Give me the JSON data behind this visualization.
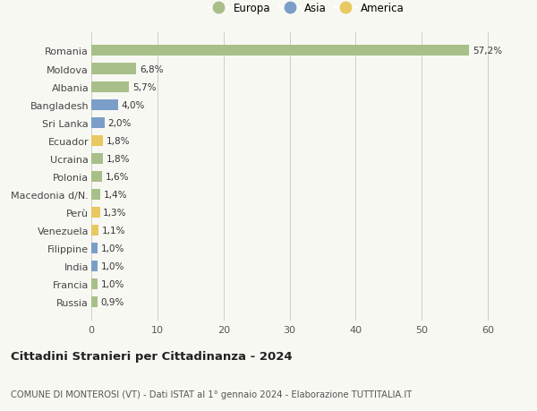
{
  "countries": [
    "Romania",
    "Moldova",
    "Albania",
    "Bangladesh",
    "Sri Lanka",
    "Ecuador",
    "Ucraina",
    "Polonia",
    "Macedonia d/N.",
    "Perù",
    "Venezuela",
    "Filippine",
    "India",
    "Francia",
    "Russia"
  ],
  "values": [
    57.2,
    6.8,
    5.7,
    4.0,
    2.0,
    1.8,
    1.8,
    1.6,
    1.4,
    1.3,
    1.1,
    1.0,
    1.0,
    1.0,
    0.9
  ],
  "labels": [
    "57,2%",
    "6,8%",
    "5,7%",
    "4,0%",
    "2,0%",
    "1,8%",
    "1,8%",
    "1,6%",
    "1,4%",
    "1,3%",
    "1,1%",
    "1,0%",
    "1,0%",
    "1,0%",
    "0,9%"
  ],
  "continents": [
    "Europa",
    "Europa",
    "Europa",
    "Asia",
    "Asia",
    "America",
    "Europa",
    "Europa",
    "Europa",
    "America",
    "America",
    "Asia",
    "Asia",
    "Europa",
    "Europa"
  ],
  "colors": {
    "Europa": "#a8bf8a",
    "Asia": "#7b9ec8",
    "America": "#e8c860"
  },
  "legend_items": [
    "Europa",
    "Asia",
    "America"
  ],
  "xlim": [
    0,
    65
  ],
  "xticks": [
    0,
    10,
    20,
    30,
    40,
    50,
    60
  ],
  "title": "Cittadini Stranieri per Cittadinanza - 2024",
  "subtitle": "COMUNE DI MONTEROSI (VT) - Dati ISTAT al 1° gennaio 2024 - Elaborazione TUTTITALIA.IT",
  "background_color": "#f8f8f3",
  "bar_height": 0.6,
  "grid_color": "#cccccc"
}
